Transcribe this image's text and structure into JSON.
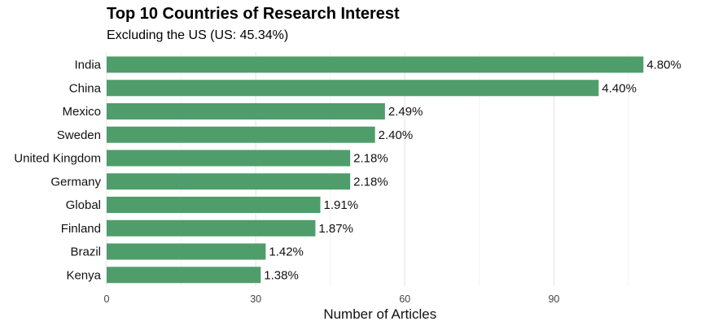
{
  "chart_data": {
    "type": "bar",
    "orientation": "horizontal",
    "title": "Top 10 Countries of Research Interest",
    "subtitle": "Excluding the US (US: 45.34%)",
    "xlabel": "Number of Articles",
    "ylabel": "",
    "categories": [
      "India",
      "China",
      "Mexico",
      "Sweden",
      "United Kingdom",
      "Germany",
      "Global",
      "Finland",
      "Brazil",
      "Kenya"
    ],
    "values": [
      108,
      99,
      56,
      54,
      49,
      49,
      43,
      42,
      32,
      31
    ],
    "value_labels": [
      "4.80%",
      "4.40%",
      "2.49%",
      "2.40%",
      "2.18%",
      "2.18%",
      "1.91%",
      "1.87%",
      "1.42%",
      "1.38%"
    ],
    "xlim": [
      0,
      110
    ],
    "xticks": [
      0,
      30,
      60,
      90
    ],
    "xtick_labels": [
      "0",
      "30",
      "60",
      "90"
    ],
    "grid": true,
    "bar_color": "#4f9d6b"
  }
}
